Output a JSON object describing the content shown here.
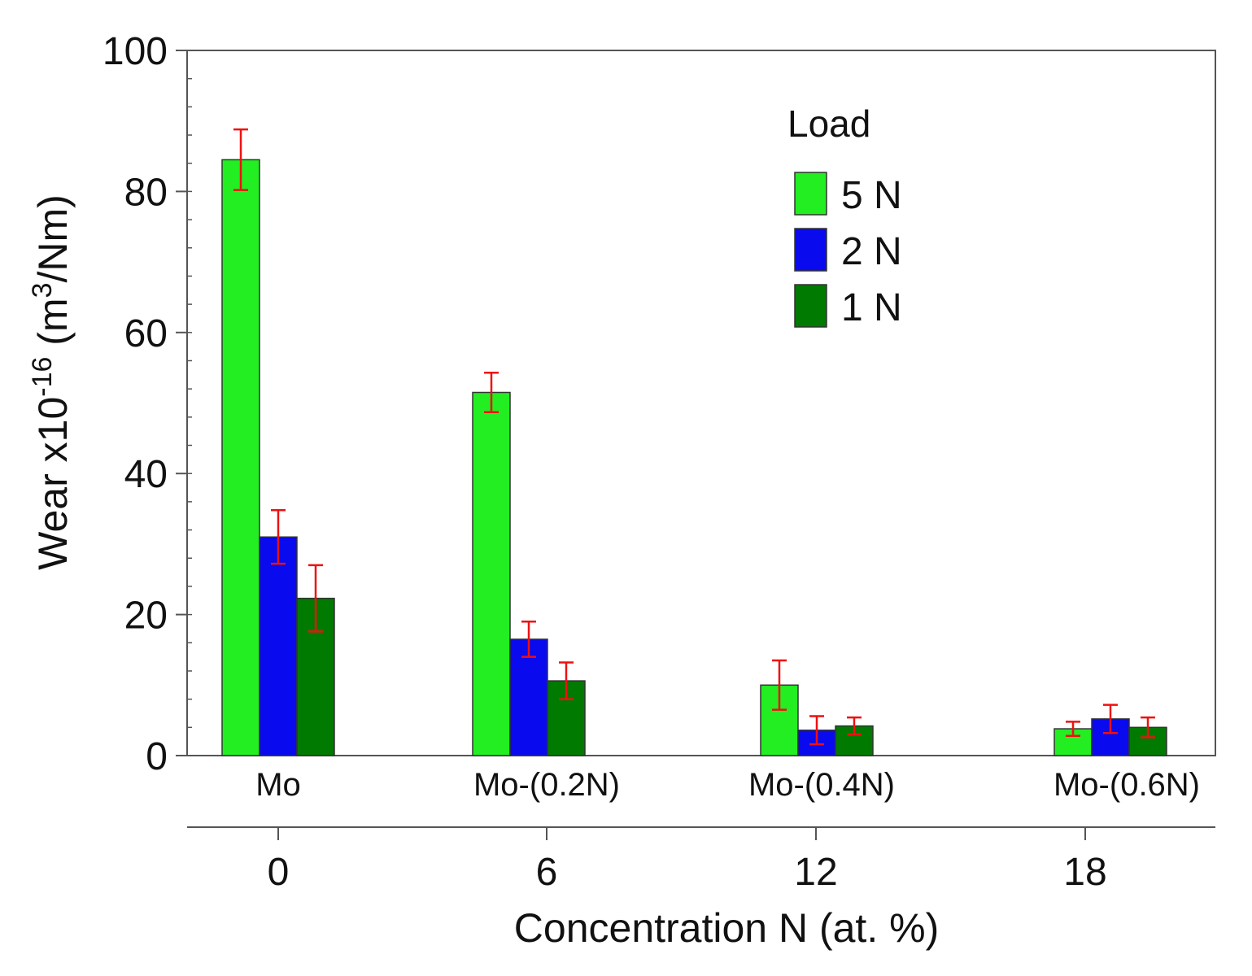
{
  "chart_data": {
    "type": "bar",
    "categories": [
      "Mo",
      "Mo-(0.2N)",
      "Mo-(0.4N)",
      "Mo-(0.6N)"
    ],
    "x_secondary": {
      "values": [
        0,
        6,
        12,
        18
      ],
      "label": "Concentration N  (at. %)"
    },
    "ylabel": {
      "main": "Wear x10",
      "exp": "-16",
      "unit_pre": " (m",
      "unit_exp": "3",
      "unit_post": "/Nm)"
    },
    "ylim": [
      0,
      100
    ],
    "yticks": [
      0,
      20,
      40,
      60,
      80,
      100
    ],
    "y_minor_step": 4,
    "legend": {
      "title": "Load",
      "position": "top-right"
    },
    "series": [
      {
        "name": "5 N",
        "color": "#22ee22",
        "values": [
          84.5,
          51.5,
          10.0,
          3.8
        ],
        "errors": [
          4.3,
          2.8,
          3.5,
          1.0
        ]
      },
      {
        "name": "2 N",
        "color": "#0a0aee",
        "values": [
          31.0,
          16.5,
          3.6,
          5.2
        ],
        "errors": [
          3.8,
          2.5,
          2.0,
          2.0
        ]
      },
      {
        "name": "1 N",
        "color": "#007a00",
        "values": [
          22.3,
          10.6,
          4.2,
          4.0
        ],
        "errors": [
          4.7,
          2.6,
          1.2,
          1.4
        ]
      }
    ],
    "error_bar_color": "#ee1111",
    "grid": false
  }
}
